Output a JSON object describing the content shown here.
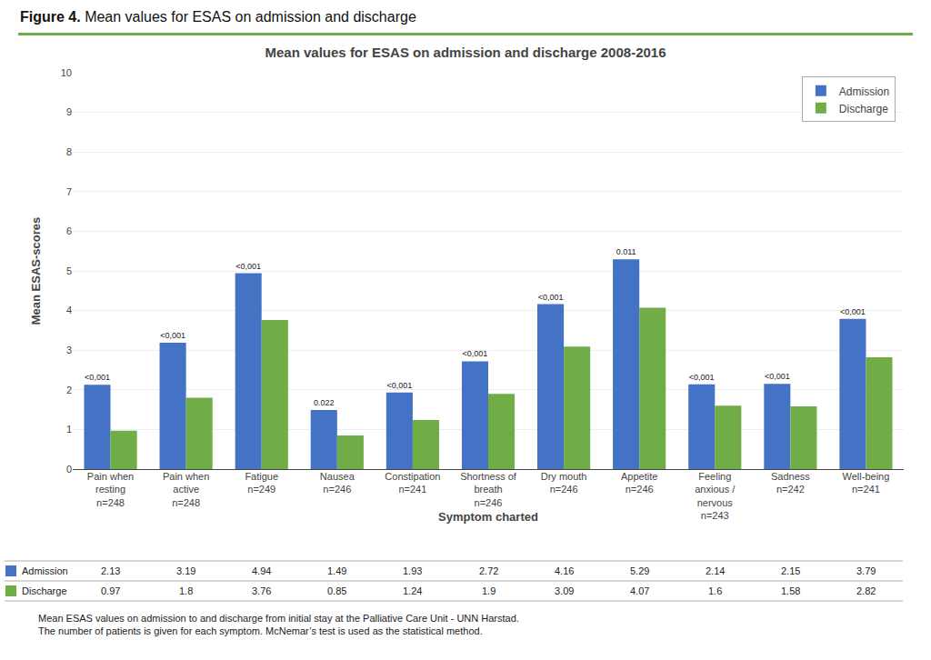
{
  "chart_data": {
    "type": "bar",
    "figure_label": "Figure 4.",
    "figure_title": "Mean values for ESAS on admission and discharge",
    "title": "Mean values for ESAS on admission and discharge 2008-2016",
    "xlabel": "Symptom charted",
    "ylabel": "Mean ESAS-scores",
    "categories": [
      "Pain when\nresting\nn=248",
      "Pain when\nactive\nn=248",
      "Fatigue\nn=249",
      "Nausea\nn=246",
      "Constipation\nn=241",
      "Shortness of\nbreath\nn=246",
      "Dry mouth\nn=246",
      "Appetite\nn=246",
      "Feeling\nanxious /\nnervous\nn=243",
      "Sadness\nn=242",
      "Well-being\nn=241"
    ],
    "series": [
      {
        "name": "Admission",
        "color": "#4472C4",
        "values": [
          2.13,
          3.19,
          4.94,
          1.49,
          1.93,
          2.72,
          4.16,
          5.29,
          2.14,
          2.15,
          3.79
        ],
        "annotations": [
          "<0,001",
          "<0,001",
          "<0,001",
          "0.022",
          "<0,001",
          "<0,001",
          "<0,001",
          "0.011",
          "<0,001",
          "<0,001",
          "<0,001"
        ]
      },
      {
        "name": "Discharge",
        "color": "#70AD47",
        "values": [
          0.97,
          1.8,
          3.76,
          0.85,
          1.24,
          1.9,
          3.09,
          4.07,
          1.6,
          1.58,
          2.82
        ]
      }
    ],
    "ylim": [
      0,
      10
    ],
    "yticks": [
      0,
      1,
      2,
      3,
      4,
      5,
      6,
      7,
      8,
      9,
      10
    ],
    "grid": true,
    "legend": "upper right",
    "table": {
      "rows": [
        "Admission",
        "Discharge"
      ]
    },
    "footer": "Mean ESAS values on admission to and discharge from initial stay at the Palliative Care Unit - UNN Harstad.\nThe number of patients is given for each symptom. McNemar’s test is used as the statistical method."
  }
}
